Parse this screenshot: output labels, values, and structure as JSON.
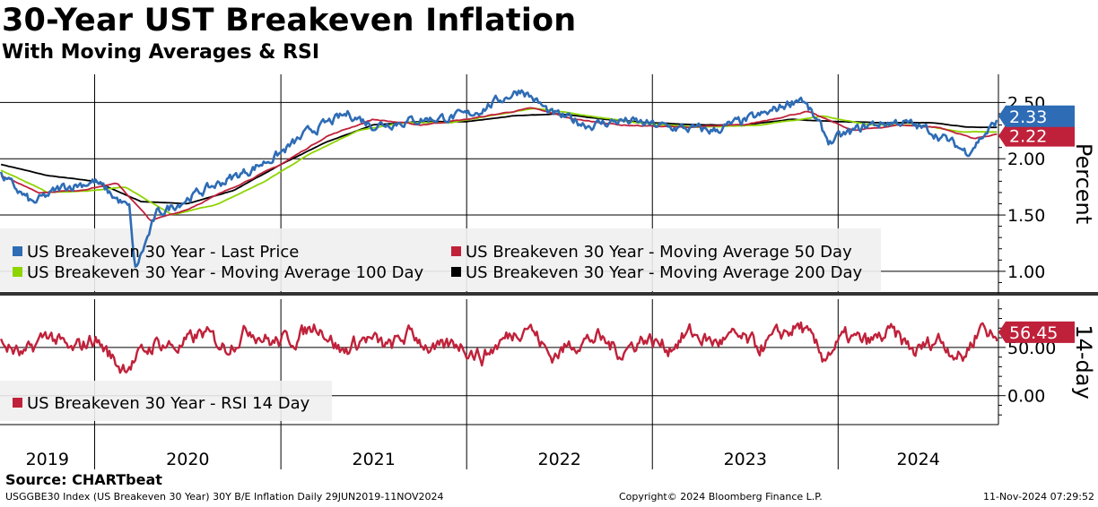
{
  "header": {
    "title": "30-Year UST Breakeven Inflation",
    "subtitle": "With Moving Averages & RSI"
  },
  "footer": {
    "source": "Source: CHARTbeat",
    "description": "USGGBE30 Index (US Breakeven 30 Year) 30Y B/E Inflation  Daily 29JUN2019-11NOV2024",
    "copyright": "Copyright© 2024 Bloomberg Finance L.P.",
    "timestamp": "11-Nov-2024 07:29:52"
  },
  "colors": {
    "last_price": "#2e6cb5",
    "ma50": "#c0213a",
    "ma100": "#8ed400",
    "ma200": "#000000",
    "rsi": "#c0213a"
  },
  "chart_data": [
    {
      "type": "line",
      "ylabel": "Percent",
      "ylim": [
        0.8,
        2.75
      ],
      "yticks": [
        1.0,
        1.5,
        2.0,
        2.5
      ],
      "ytick_labels": [
        "1.00",
        "1.50",
        "2.00",
        "2.50"
      ],
      "xlim": [
        "2019-06-29",
        "2024-11-11"
      ],
      "x_tick_labels": [
        "2019",
        "2020",
        "2021",
        "2022",
        "2023",
        "2024"
      ],
      "grid": true,
      "legend_position": "bottom-left",
      "last_value_labels": [
        {
          "series": "US Breakeven 30 Year - Last Price",
          "text": "2.33",
          "value": 2.33
        },
        {
          "series": "US Breakeven 30 Year - Moving Average 50 Day",
          "text": "2.22",
          "value": 2.22
        }
      ],
      "series": [
        {
          "name": "US Breakeven 30 Year - Last Price",
          "color_key": "last_price",
          "x": [
            "2019-07-01",
            "2019-09-01",
            "2019-11-01",
            "2020-01-01",
            "2020-03-10",
            "2020-03-20",
            "2020-05-01",
            "2020-07-01",
            "2020-09-01",
            "2020-11-01",
            "2021-01-01",
            "2021-03-01",
            "2021-05-15",
            "2021-07-01",
            "2021-10-01",
            "2022-01-01",
            "2022-04-20",
            "2022-06-15",
            "2022-09-01",
            "2022-11-01",
            "2023-02-01",
            "2023-05-01",
            "2023-08-15",
            "2023-10-20",
            "2023-12-15",
            "2024-03-01",
            "2024-05-01",
            "2024-07-01",
            "2024-09-10",
            "2024-11-08"
          ],
          "values": [
            1.85,
            1.6,
            1.75,
            1.8,
            1.55,
            1.0,
            1.5,
            1.65,
            1.78,
            1.9,
            2.05,
            2.25,
            2.4,
            2.3,
            2.35,
            2.38,
            2.62,
            2.4,
            2.3,
            2.34,
            2.28,
            2.25,
            2.4,
            2.55,
            2.15,
            2.3,
            2.33,
            2.25,
            2.06,
            2.33
          ]
        },
        {
          "name": "US Breakeven 30 Year - Moving Average 50 Day",
          "color_key": "ma50",
          "x": [
            "2019-07-01",
            "2019-09-15",
            "2019-12-01",
            "2020-02-15",
            "2020-04-20",
            "2020-07-01",
            "2020-10-01",
            "2021-01-01",
            "2021-04-01",
            "2021-07-01",
            "2021-10-01",
            "2022-01-01",
            "2022-05-10",
            "2022-08-01",
            "2022-11-01",
            "2023-03-01",
            "2023-07-01",
            "2023-11-01",
            "2024-02-01",
            "2024-05-01",
            "2024-07-15",
            "2024-09-25",
            "2024-11-08"
          ],
          "values": [
            1.85,
            1.7,
            1.72,
            1.78,
            1.45,
            1.55,
            1.75,
            1.95,
            2.2,
            2.35,
            2.3,
            2.35,
            2.45,
            2.35,
            2.3,
            2.28,
            2.3,
            2.42,
            2.25,
            2.3,
            2.28,
            2.18,
            2.22
          ]
        },
        {
          "name": "US Breakeven 30 Year - Moving Average 100 Day",
          "color_key": "ma100",
          "x": [
            "2019-07-01",
            "2019-10-01",
            "2020-01-01",
            "2020-03-01",
            "2020-06-01",
            "2020-09-01",
            "2020-12-01",
            "2021-03-01",
            "2021-06-01",
            "2021-09-01",
            "2021-12-01",
            "2022-05-15",
            "2022-09-01",
            "2022-12-01",
            "2023-04-01",
            "2023-08-01",
            "2023-12-01",
            "2024-03-01",
            "2024-06-01",
            "2024-09-01",
            "2024-11-08"
          ],
          "values": [
            1.9,
            1.7,
            1.72,
            1.75,
            1.5,
            1.6,
            1.8,
            2.05,
            2.25,
            2.32,
            2.32,
            2.45,
            2.38,
            2.32,
            2.28,
            2.3,
            2.38,
            2.3,
            2.3,
            2.24,
            2.24
          ]
        },
        {
          "name": "US Breakeven 30 Year - Moving Average 200 Day",
          "color_key": "ma200",
          "x": [
            "2019-07-01",
            "2019-10-01",
            "2020-01-01",
            "2020-04-01",
            "2020-07-01",
            "2020-10-01",
            "2021-01-01",
            "2021-04-01",
            "2021-07-01",
            "2021-10-01",
            "2022-01-01",
            "2022-04-01",
            "2022-07-01",
            "2022-10-01",
            "2023-01-01",
            "2023-04-01",
            "2023-07-01",
            "2023-10-01",
            "2024-01-01",
            "2024-04-01",
            "2024-07-01",
            "2024-09-15",
            "2024-11-08"
          ],
          "values": [
            1.95,
            1.85,
            1.8,
            1.62,
            1.6,
            1.72,
            1.95,
            2.15,
            2.3,
            2.33,
            2.33,
            2.38,
            2.4,
            2.35,
            2.32,
            2.3,
            2.3,
            2.35,
            2.33,
            2.32,
            2.32,
            2.28,
            2.28
          ]
        }
      ]
    },
    {
      "type": "line",
      "ylabel": "14-day",
      "ylim": [
        -30,
        100
      ],
      "yticks": [
        0,
        50
      ],
      "ytick_labels": [
        "0.00",
        "50.00"
      ],
      "xlim": [
        "2019-06-29",
        "2024-11-11"
      ],
      "grid": true,
      "legend_position": "bottom-left",
      "last_value_labels": [
        {
          "series": "US Breakeven 30 Year - RSI 14 Day",
          "text": "56.45",
          "value": 56.45
        }
      ],
      "series": [
        {
          "name": "US Breakeven 30 Year - RSI 14 Day",
          "color_key": "rsi",
          "x": [
            "2019-07-01",
            "2019-08-15",
            "2019-10-01",
            "2019-11-15",
            "2020-01-01",
            "2020-02-20",
            "2020-03-15",
            "2020-05-01",
            "2020-06-15",
            "2020-08-01",
            "2020-09-15",
            "2020-11-01",
            "2020-12-15",
            "2021-02-01",
            "2021-03-15",
            "2021-05-01",
            "2021-06-15",
            "2021-08-01",
            "2021-09-15",
            "2021-11-01",
            "2021-12-15",
            "2022-02-01",
            "2022-03-20",
            "2022-05-01",
            "2022-06-15",
            "2022-08-01",
            "2022-09-15",
            "2022-11-01",
            "2022-12-15",
            "2023-02-01",
            "2023-03-15",
            "2023-05-01",
            "2023-06-15",
            "2023-08-01",
            "2023-09-15",
            "2023-10-20",
            "2023-12-01",
            "2024-01-15",
            "2024-03-01",
            "2024-04-15",
            "2024-06-01",
            "2024-07-15",
            "2024-09-01",
            "2024-10-10",
            "2024-11-08"
          ],
          "values": [
            55,
            40,
            65,
            45,
            60,
            30,
            35,
            55,
            50,
            65,
            50,
            70,
            55,
            60,
            75,
            45,
            60,
            50,
            65,
            45,
            55,
            40,
            60,
            75,
            40,
            55,
            60,
            45,
            60,
            50,
            65,
            55,
            60,
            50,
            65,
            72,
            40,
            60,
            55,
            65,
            45,
            60,
            38,
            75,
            56.45
          ]
        }
      ]
    }
  ],
  "legend_top": [
    {
      "label": "US Breakeven 30 Year - Last Price",
      "color_key": "last_price"
    },
    {
      "label": "US Breakeven 30 Year - Moving Average 50 Day",
      "color_key": "ma50"
    },
    {
      "label": "US Breakeven 30 Year - Moving Average 100 Day",
      "color_key": "ma100"
    },
    {
      "label": "US Breakeven 30 Year - Moving Average 200 Day",
      "color_key": "ma200"
    }
  ],
  "legend_bottom": [
    {
      "label": "US Breakeven 30 Year - RSI 14 Day",
      "color_key": "rsi"
    }
  ]
}
